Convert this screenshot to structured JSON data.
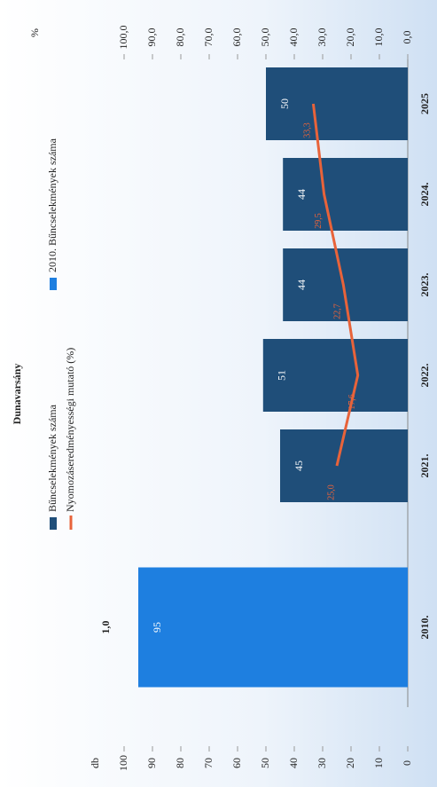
{
  "chart_data": {
    "type": "bar",
    "title": "Dunavarsány",
    "y_label": "db",
    "y2_label": "%",
    "annotations": [
      "1,0"
    ],
    "categories": [
      "2010.",
      "2021.",
      "2022.",
      "2023.",
      "2024.",
      "2025"
    ],
    "series": [
      {
        "name": "Bűncselekmények száma",
        "type": "bar",
        "color": "#1f4e79",
        "values": [
          null,
          45,
          51,
          44,
          44,
          50
        ]
      },
      {
        "name": "Nyomozáseredményességi mutató (%)",
        "type": "line",
        "axis": "y2",
        "color": "#e8633a",
        "values": [
          null,
          25,
          17.6,
          22.7,
          29.5,
          33.3
        ],
        "value_labels": [
          null,
          "25,0",
          "17,6",
          "22,7",
          "29,5",
          "33,3"
        ]
      },
      {
        "name": "2010. Bűncselekmények száma",
        "type": "bar",
        "color": "#1e7fe0",
        "values": [
          95,
          null,
          null,
          null,
          null,
          null
        ]
      }
    ],
    "ylim": [
      0,
      100
    ],
    "yticks": [
      0,
      10,
      20,
      30,
      40,
      50,
      60,
      70,
      80,
      90,
      100
    ],
    "y2lim": [
      0,
      100
    ],
    "y2ticks": [
      {
        "value": 0,
        "label": "0,0"
      },
      {
        "value": 10,
        "label": "10,0"
      },
      {
        "value": 20,
        "label": "20,0"
      },
      {
        "value": 30,
        "label": "30,0"
      },
      {
        "value": 40,
        "label": "40,0"
      },
      {
        "value": 50,
        "label": "50,0"
      },
      {
        "value": 60,
        "label": "60,0"
      },
      {
        "value": 70,
        "label": "70,0"
      },
      {
        "value": 80,
        "label": "80,0"
      },
      {
        "value": 90,
        "label": "90,0"
      },
      {
        "value": 100,
        "label": "100,0"
      }
    ],
    "grid": false
  }
}
